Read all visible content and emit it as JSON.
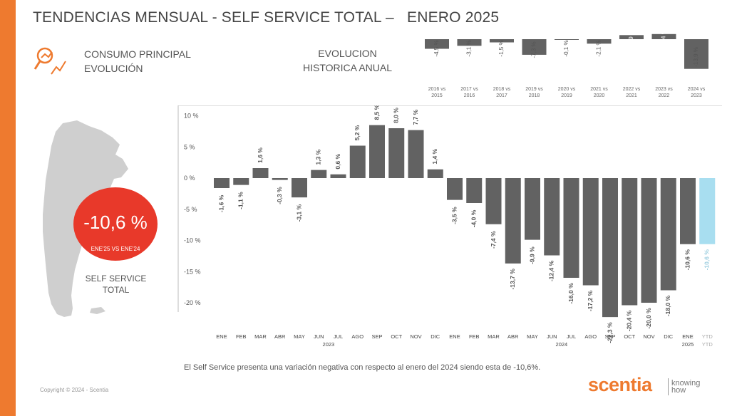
{
  "header": {
    "title": "TENDENCIAS MENSUAL - SELF SERVICE TOTAL –   ENERO 2025"
  },
  "section": {
    "consumo_line1": "CONSUMO PRINCIPAL",
    "consumo_line2": "EVOLUCIÓN",
    "hist_line1": "EVOLUCION",
    "hist_line2": "HISTORICA ANUAL"
  },
  "badge": {
    "value": "-10,6 %",
    "sub": "ENE'25 VS ENE'24"
  },
  "map_label": {
    "line1": "SELF SERVICE",
    "line2": "TOTAL"
  },
  "footer": {
    "note": "El Self Service presenta una variación negativa con respecto al enero del 2024 siendo esta de -10,6%.",
    "copyright": "Copyright © 2024 - Scentia",
    "logo": "scentia",
    "tag1": "knowing",
    "tag2": "how"
  },
  "colors": {
    "orange": "#ee7a2f",
    "bar": "#626262",
    "ytd": "#a8def0",
    "badge": "#e8392a"
  },
  "chart_data": [
    {
      "type": "bar",
      "title": "EVOLUCION HISTORICA ANUAL",
      "categories": [
        [
          "2016 vs",
          "2015"
        ],
        [
          "2017 vs",
          "2016"
        ],
        [
          "2018 vs",
          "2017"
        ],
        [
          "2019 vs",
          "2018"
        ],
        [
          "2020 vs",
          "2019"
        ],
        [
          "2021 vs",
          "2020"
        ],
        [
          "2022 vs",
          "2021"
        ],
        [
          "2023 vs",
          "2022"
        ],
        [
          "2024 vs",
          "2023"
        ]
      ],
      "values": [
        -4.5,
        -3.1,
        -1.5,
        -7.3,
        -0.1,
        -2.1,
        1.9,
        2.4,
        -13.9
      ],
      "labels": [
        "-4,5 %",
        "-3,1 %",
        "-1,5 %",
        "-7,3 %",
        "-0,1 %",
        "-2,1 %",
        "1,9 %",
        "2,4 %",
        "-13,9 %"
      ]
    },
    {
      "type": "bar",
      "title": "Tendencias mensual",
      "ylim": [
        -20,
        10
      ],
      "yticks": [
        10,
        5,
        0,
        -5,
        -10,
        -15,
        -20
      ],
      "ytick_labels": [
        "10 %",
        "5 %",
        "0 %",
        "-5 %",
        "-10 %",
        "-15 %",
        "-20 %"
      ],
      "categories": [
        "ENE",
        "FEB",
        "MAR",
        "ABR",
        "MAY",
        "JUN",
        "JUL",
        "AGO",
        "SEP",
        "OCT",
        "NOV",
        "DIC",
        "ENE",
        "FEB",
        "MAR",
        "ABR",
        "MAY",
        "JUN",
        "JUL",
        "AGO",
        "SEP",
        "OCT",
        "NOV",
        "DIC",
        "ENE",
        "YTD"
      ],
      "sublabels": [
        "",
        "",
        "",
        "",
        "",
        "",
        "",
        "",
        "",
        "",
        "",
        "",
        "",
        "",
        "",
        "",
        "",
        "",
        "",
        "",
        "",
        "",
        "",
        "",
        "",
        "YTD"
      ],
      "values": [
        -1.6,
        -1.1,
        1.6,
        -0.3,
        -3.1,
        1.3,
        0.6,
        5.2,
        8.5,
        8.0,
        7.7,
        1.4,
        -3.5,
        -4.0,
        -7.4,
        -13.7,
        -9.9,
        -12.4,
        -16.0,
        -17.2,
        -22.3,
        -20.4,
        -20.0,
        -18.0,
        -10.6,
        -10.6
      ],
      "labels": [
        "-1,6 %",
        "-1,1 %",
        "1,6 %",
        "-0,3 %",
        "-3,1 %",
        "1,3 %",
        "0,6 %",
        "5,2 %",
        "8,5 %",
        "8,0 %",
        "7,7 %",
        "1,4 %",
        "-3,5 %",
        "-4,0 %",
        "-7,4 %",
        "-13,7 %",
        "-9,9 %",
        "-12,4 %",
        "-16,0 %",
        "-17,2 %",
        "-22,3 %",
        "-20,4 %",
        "-20,0 %",
        "-18,0 %",
        "-10,6 %",
        "-10,6 %"
      ],
      "year_groups": [
        {
          "label": "2023",
          "from": 0,
          "to": 11
        },
        {
          "label": "2024",
          "from": 12,
          "to": 23
        },
        {
          "label": "2025",
          "from": 24,
          "to": 24
        }
      ]
    }
  ]
}
